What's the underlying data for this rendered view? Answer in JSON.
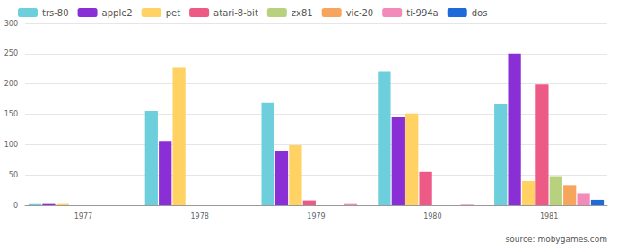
{
  "chart_data": {
    "type": "bar",
    "categories": [
      "1977",
      "1978",
      "1979",
      "1980",
      "1981"
    ],
    "series": [
      {
        "name": "trs-80",
        "color": "#6dcfdb",
        "values": [
          2,
          155,
          169,
          221,
          167
        ]
      },
      {
        "name": "apple2",
        "color": "#8a2fd6",
        "values": [
          2,
          106,
          90,
          145,
          250
        ]
      },
      {
        "name": "pet",
        "color": "#ffd263",
        "values": [
          2,
          227,
          99,
          151,
          40
        ]
      },
      {
        "name": "atari-8-bit",
        "color": "#ee5a86",
        "values": [
          0,
          0,
          8,
          55,
          199
        ]
      },
      {
        "name": "zx81",
        "color": "#b7d17f",
        "values": [
          0,
          0,
          0,
          0,
          48
        ]
      },
      {
        "name": "vic-20",
        "color": "#f7a55c",
        "values": [
          0,
          0,
          0,
          0,
          32
        ]
      },
      {
        "name": "ti-994a",
        "color": "#f28bb9",
        "values": [
          0,
          0,
          2,
          1,
          20
        ]
      },
      {
        "name": "dos",
        "color": "#1f6ad9",
        "values": [
          0,
          0,
          0,
          0,
          9
        ]
      }
    ],
    "ylim": [
      0,
      300
    ],
    "yticks": [
      0,
      50,
      100,
      150,
      200,
      250,
      300
    ],
    "grid": true,
    "legend": "top-left",
    "annotation": "source: mobygames.com"
  }
}
